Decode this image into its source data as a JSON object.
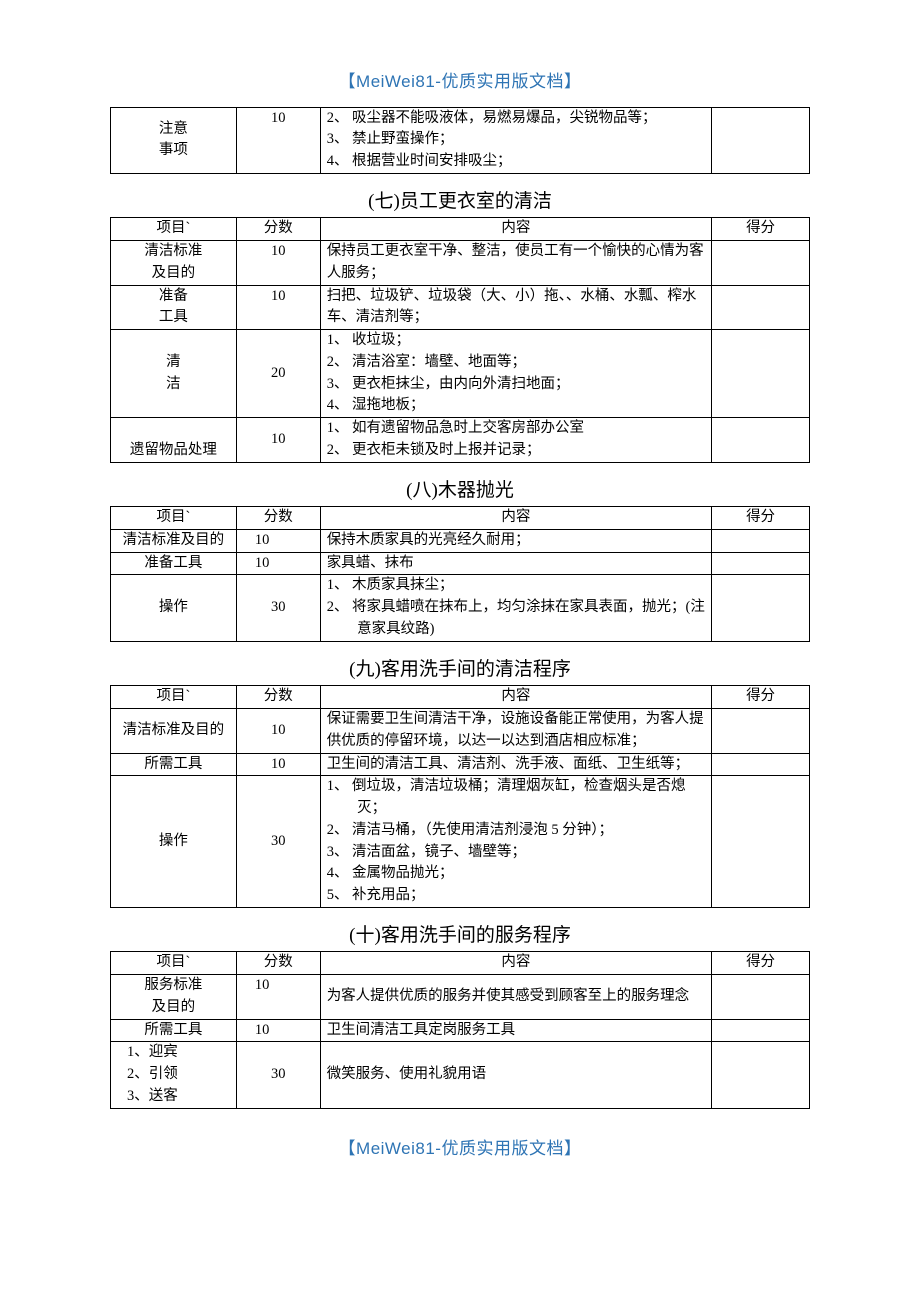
{
  "branding": {
    "header": "【MeiWei81-优质实用版文档】",
    "footer": "【MeiWei81-优质实用版文档】"
  },
  "columns": {
    "project": "项目`",
    "score": "分数",
    "content": "内容",
    "result": "得分"
  },
  "tableTop": {
    "rows": [
      {
        "project": "注意\n事项",
        "score": "10",
        "content": [
          "2、 吸尘器不能吸液体，易燃易爆品，尖锐物品等；",
          "3、 禁止野蛮操作；",
          "4、 根据营业时间安排吸尘；"
        ]
      }
    ]
  },
  "sections": [
    {
      "title": "(七)员工更衣室的清洁",
      "rows": [
        {
          "project": "清洁标准\n及目的",
          "score": "10",
          "content": [
            "保持员工更衣室干净、整洁，使员工有一个愉快的心情为客人服务；"
          ]
        },
        {
          "project": "准备\n工具",
          "score": "10",
          "content": [
            "扫把、垃圾铲、垃圾袋（大、小）拖、、水桶、水瓢、榨水车、清洁剂等；"
          ]
        },
        {
          "project": "清\n洁",
          "score": "20",
          "content": [
            "1、 收垃圾；",
            "2、 清洁浴室：墙壁、地面等；",
            "3、 更衣柜抹尘，由内向外清扫地面；",
            "4、 湿拖地板；"
          ]
        },
        {
          "project": "遗留物品处理",
          "score": "10",
          "content": [
            "1、 如有遗留物品急时上交客房部办公室",
            "2、 更衣柜未锁及时上报并记录；"
          ]
        }
      ]
    },
    {
      "title": "(八)木器抛光",
      "rows": [
        {
          "project": "清洁标准及目的",
          "score": "10",
          "content": [
            "保持木质家具的光亮经久耐用；"
          ]
        },
        {
          "project": "准备工具",
          "score": "10",
          "content": [
            "家具蜡、抹布"
          ]
        },
        {
          "project": "操作",
          "score": "30",
          "content": [
            "1、 木质家具抹尘；",
            "2、 将家具蜡喷在抹布上，均匀涂抹在家具表面，抛光；(注意家具纹路)"
          ]
        }
      ]
    },
    {
      "title": "(九)客用洗手间的清洁程序",
      "rows": [
        {
          "project": "清洁标准及目的",
          "score": "10",
          "content": [
            "保证需要卫生间清洁干净，设施设备能正常使用，为客人提供优质的停留环境，以达一以达到酒店相应标准；"
          ]
        },
        {
          "project": "所需工具",
          "score": "10",
          "content": [
            "卫生间的清洁工具、清洁剂、洗手液、面纸、卫生纸等；"
          ]
        },
        {
          "project": "操作",
          "score": "30",
          "content": [
            "1、 倒垃圾，清洁垃圾桶；清理烟灰缸，检查烟头是否熄灭；",
            "2、 清洁马桶，（先使用清洁剂浸泡 5 分钟）；",
            "3、 清洁面盆，镜子、墙壁等；",
            "4、 金属物品抛光；",
            "5、 补充用品；"
          ]
        }
      ]
    },
    {
      "title": "(十)客用洗手间的服务程序",
      "rows": [
        {
          "project": "服务标准\n及目的",
          "score": "10",
          "content": [
            "为客人提供优质的服务并使其感受到顾客至上的服务理念"
          ]
        },
        {
          "project": "所需工具",
          "score": "10",
          "content": [
            "卫生间清洁工具定岗服务工具"
          ]
        },
        {
          "project": "1、迎宾\n2、引领\n3、送客",
          "score": "30",
          "content": [
            "微笑服务、使用礼貌用语"
          ]
        }
      ]
    }
  ]
}
